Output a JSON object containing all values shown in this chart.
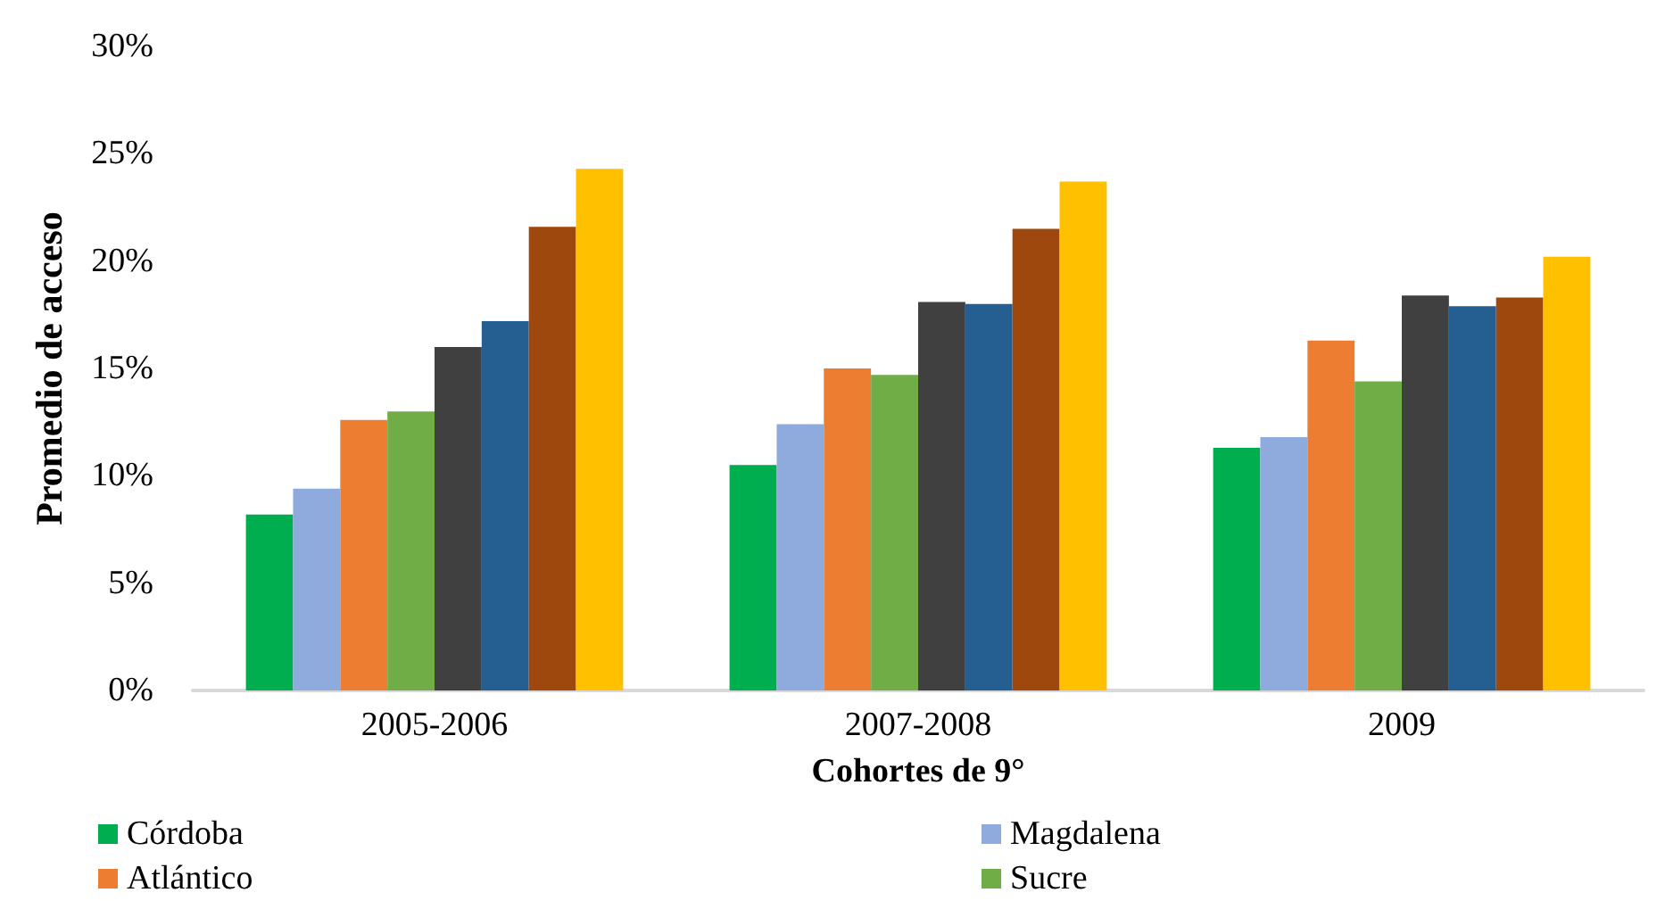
{
  "chart_data": {
    "type": "bar",
    "xlabel": "Cohortes de 9°",
    "ylabel": "Promedio de acceso",
    "categories": [
      "2005-2006",
      "2007-2008",
      "2009"
    ],
    "series": [
      {
        "name": "Córdoba",
        "color": "#00ad4f",
        "values": [
          8.2,
          10.5,
          11.3
        ]
      },
      {
        "name": "Magdalena",
        "color": "#8faadc",
        "values": [
          9.4,
          12.4,
          11.8
        ]
      },
      {
        "name": "Atlántico",
        "color": "#ed7d31",
        "values": [
          12.6,
          15.0,
          16.3
        ]
      },
      {
        "name": "Sucre",
        "color": "#70ad47",
        "values": [
          13.0,
          14.7,
          14.4
        ]
      },
      {
        "color": "#404040",
        "values": [
          16.0,
          18.1,
          18.4
        ]
      },
      {
        "color": "#255e91",
        "values": [
          17.2,
          18.0,
          17.9
        ]
      },
      {
        "color": "#9e480e",
        "values": [
          21.6,
          21.5,
          18.3
        ]
      },
      {
        "color": "#ffc000",
        "values": [
          24.3,
          23.7,
          20.2
        ]
      }
    ],
    "ylim": [
      0,
      30
    ],
    "yticks": [
      {
        "value": 0,
        "label": "0%"
      },
      {
        "value": 5,
        "label": "5%"
      },
      {
        "value": 10,
        "label": "10%"
      },
      {
        "value": 15,
        "label": "15%"
      },
      {
        "value": 20,
        "label": "20%"
      },
      {
        "value": 25,
        "label": "25%"
      },
      {
        "value": 30,
        "label": "30%"
      }
    ],
    "grid": false,
    "legend": "bottom"
  }
}
